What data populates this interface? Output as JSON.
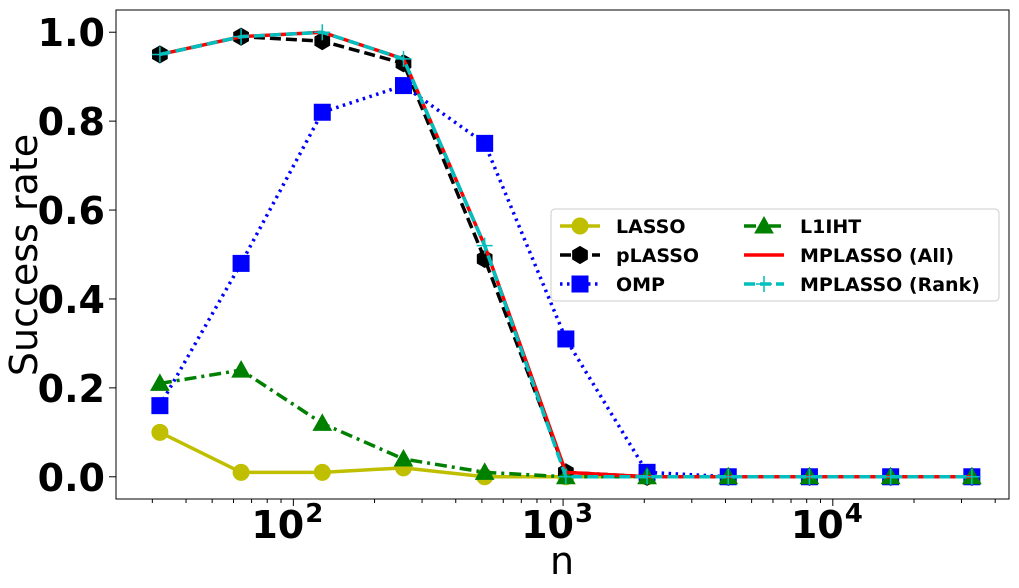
{
  "chart_data": {
    "type": "line",
    "xlabel": "n",
    "ylabel": "Success rate",
    "x_scale": "log",
    "xlim": [
      22,
      45000
    ],
    "ylim": [
      -0.05,
      1.05
    ],
    "x_ticks": [
      {
        "value": 100,
        "base": "10",
        "exp": "2"
      },
      {
        "value": 1000,
        "base": "10",
        "exp": "3"
      },
      {
        "value": 10000,
        "base": "10",
        "exp": "4"
      }
    ],
    "y_ticks": [
      "0.0",
      "0.2",
      "0.4",
      "0.6",
      "0.8",
      "1.0"
    ],
    "x": [
      32,
      64,
      128,
      256,
      512,
      1024,
      2048,
      4096,
      8192,
      16384,
      32768
    ],
    "series": [
      {
        "name": "LASSO",
        "color": "#bfbf00",
        "dash": "solid",
        "marker": "circle",
        "values": [
          0.1,
          0.01,
          0.01,
          0.02,
          0.0,
          0.0,
          0.0,
          0.0,
          0.0,
          0.0,
          0.0
        ]
      },
      {
        "name": "pLASSO",
        "color": "#000000",
        "dash": "dashed",
        "marker": "hexagon",
        "values": [
          0.95,
          0.99,
          0.98,
          0.93,
          0.49,
          0.01,
          0.0,
          0.0,
          0.0,
          0.0,
          0.0
        ]
      },
      {
        "name": "OMP",
        "color": "#0000ff",
        "dash": "dotted",
        "marker": "square",
        "values": [
          0.16,
          0.48,
          0.82,
          0.88,
          0.75,
          0.31,
          0.01,
          0.0,
          0.0,
          0.0,
          0.0
        ]
      },
      {
        "name": "L1IHT",
        "color": "#008000",
        "dash": "dashdot",
        "marker": "triangle",
        "values": [
          0.21,
          0.24,
          0.12,
          0.04,
          0.01,
          0.0,
          0.0,
          0.0,
          0.0,
          0.0,
          0.0
        ]
      },
      {
        "name": "MPLASSO (All)",
        "color": "#ff0000",
        "dash": "solid",
        "marker": "none",
        "values": [
          0.95,
          0.99,
          1.0,
          0.94,
          0.52,
          0.01,
          0.0,
          0.0,
          0.0,
          0.0,
          0.0
        ]
      },
      {
        "name": "MPLASSO (Rank)",
        "color": "#00bfbf",
        "dash": "dashed",
        "marker": "plus",
        "values": [
          0.95,
          0.99,
          1.0,
          0.94,
          0.52,
          0.0,
          0.0,
          0.0,
          0.0,
          0.0,
          0.0
        ]
      }
    ],
    "legend": {
      "placement": "center-right",
      "columns": 2
    },
    "grid": false
  }
}
